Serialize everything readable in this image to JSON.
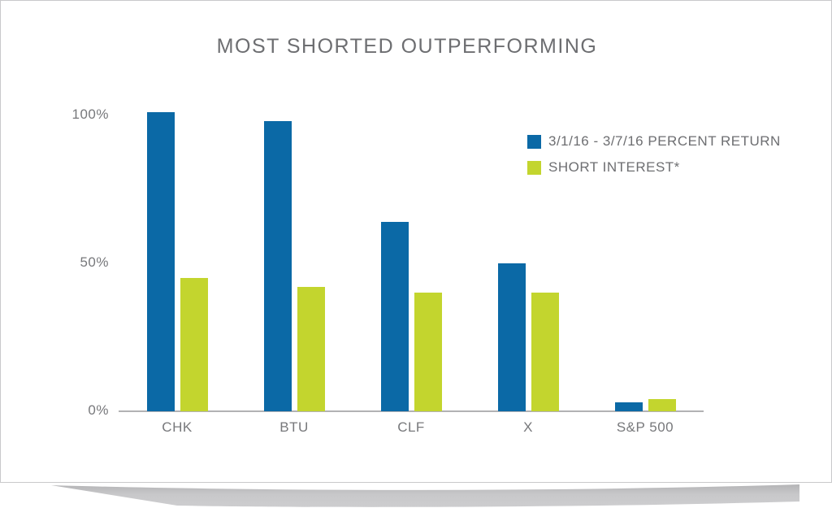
{
  "chart_data": {
    "type": "bar",
    "title": "MOST SHORTED OUTPERFORMING",
    "categories": [
      "CHK",
      "BTU",
      "CLF",
      "X",
      "S&P 500"
    ],
    "series": [
      {
        "name": "3/1/16 - 3/7/16 PERCENT RETURN",
        "color": "#0b69a6",
        "values": [
          101,
          98,
          64,
          50,
          3
        ]
      },
      {
        "name": "SHORT INTEREST*",
        "color": "#c3d52e",
        "values": [
          45,
          42,
          40,
          40,
          4
        ]
      }
    ],
    "xlabel": "",
    "ylabel": "",
    "ylim": [
      0,
      102
    ],
    "yticks": [
      {
        "value": 0,
        "label": "0%"
      },
      {
        "value": 50,
        "label": "50%"
      },
      {
        "value": 100,
        "label": "100%"
      }
    ],
    "grid": false,
    "legend_position": "upper-right"
  },
  "colors": {
    "bar_blue": "#0b69a6",
    "bar_green": "#c3d52e",
    "text_gray": "#6d6e71",
    "axis_gray": "#b2b2b4",
    "card_border": "#c9c9cb",
    "shadow_gray": "#c6c6c8"
  }
}
